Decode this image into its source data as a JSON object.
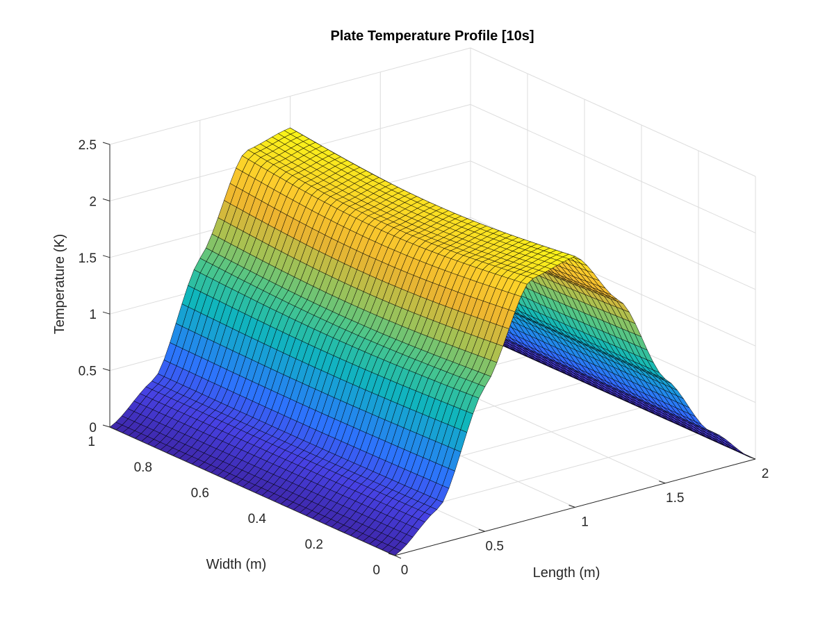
{
  "chart_data": {
    "type": "surface",
    "title": "Plate Temperature Profile [10s]",
    "xlabel": "Length (m)",
    "ylabel": "Width (m)",
    "zlabel": "Temperature (K)",
    "xlim": [
      0,
      2
    ],
    "ylim": [
      0,
      1
    ],
    "zlim": [
      0,
      2.5
    ],
    "x_ticks": [
      "0",
      "0.5",
      "1",
      "1.5",
      "2"
    ],
    "y_ticks": [
      "0",
      "0.2",
      "0.4",
      "0.6",
      "0.8",
      "1"
    ],
    "z_ticks": [
      "0",
      "0.5",
      "1",
      "1.5",
      "2",
      "2.5"
    ],
    "grid": true,
    "colormap": "parula",
    "colormap_colors": [
      "#3e26a8",
      "#4742e3",
      "#2f70fe",
      "#1b97e0",
      "#10b7ba",
      "#4bc68b",
      "#a7c152",
      "#ecb430",
      "#fccc2c",
      "#f9fb15"
    ],
    "mesh_line_color": "#000000",
    "grid_points": {
      "x": 61,
      "y": 46
    },
    "surface_samples": {
      "x": [
        0,
        0.25,
        0.5,
        0.75,
        1.0,
        1.25,
        1.5,
        1.75,
        2.0
      ],
      "z_along_y_edge_0": [
        0,
        0.32,
        1.28,
        2.12,
        2.22,
        1.72,
        0.92,
        0.35,
        0
      ],
      "z_along_y_edge_1": [
        0,
        0.32,
        1.28,
        2.12,
        2.22,
        1.72,
        0.92,
        0.35,
        0
      ],
      "peak": {
        "x": 0.9,
        "y_range": [
          0,
          1
        ],
        "z": 2.25
      }
    }
  }
}
